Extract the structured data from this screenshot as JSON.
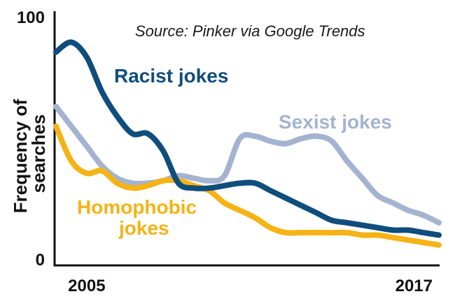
{
  "chart_data": {
    "type": "line",
    "title": "",
    "source_note": "Source: Pinker via Google Trends",
    "ylabel": "Frequency of searches",
    "ylabel_lines": [
      "Frequency of",
      "searches"
    ],
    "xlabel": "",
    "x": [
      2004.5,
      2005.0,
      2005.5,
      2006.0,
      2006.5,
      2007.0,
      2007.5,
      2008.0,
      2008.5,
      2009.0,
      2009.5,
      2010.0,
      2010.5,
      2011.0,
      2011.5,
      2012.0,
      2012.5,
      2013.0,
      2013.5,
      2014.0,
      2014.5,
      2015.0,
      2015.5,
      2016.0,
      2016.5,
      2017.0
    ],
    "xlim": [
      2004.5,
      2017.0
    ],
    "ylim": [
      0,
      100
    ],
    "x_tick_labels": [
      {
        "value": 2005.0,
        "label": "2005"
      },
      {
        "value": 2017.0,
        "label": "2017"
      }
    ],
    "y_tick_labels": [
      {
        "value": 100,
        "label": "100"
      },
      {
        "value": 0,
        "label": "0"
      }
    ],
    "grid": false,
    "legend": "inline labels",
    "series": [
      {
        "name": "Racist jokes",
        "color": "#0f4d7d",
        "values": [
          84,
          88,
          82,
          68,
          58,
          51,
          51,
          44,
          31,
          29,
          29,
          30,
          31,
          31,
          28,
          25,
          22,
          19,
          16,
          15,
          14,
          13,
          12,
          12,
          11,
          10
        ]
      },
      {
        "name": "Sexist jokes",
        "color": "#a4b3d0",
        "values": [
          62,
          54,
          46,
          38,
          33,
          31,
          31,
          32,
          34,
          33,
          32,
          34,
          49,
          50,
          48,
          47,
          49,
          50,
          48,
          40,
          33,
          26,
          23,
          20,
          18,
          15
        ]
      },
      {
        "name": "Homophobic jokes",
        "color": "#f5b315",
        "values": [
          54,
          40,
          35,
          36,
          31,
          29,
          30,
          32,
          32,
          30,
          28,
          23,
          20,
          17,
          13,
          11,
          11,
          11,
          11,
          11,
          10,
          10,
          9,
          8,
          7,
          6
        ]
      }
    ],
    "series_labels": [
      {
        "series": "Racist jokes",
        "lines": [
          "Racist jokes"
        ]
      },
      {
        "series": "Sexist jokes",
        "lines": [
          "Sexist jokes"
        ]
      },
      {
        "series": "Homophobic jokes",
        "lines": [
          "Homophobic",
          "jokes"
        ]
      }
    ]
  }
}
